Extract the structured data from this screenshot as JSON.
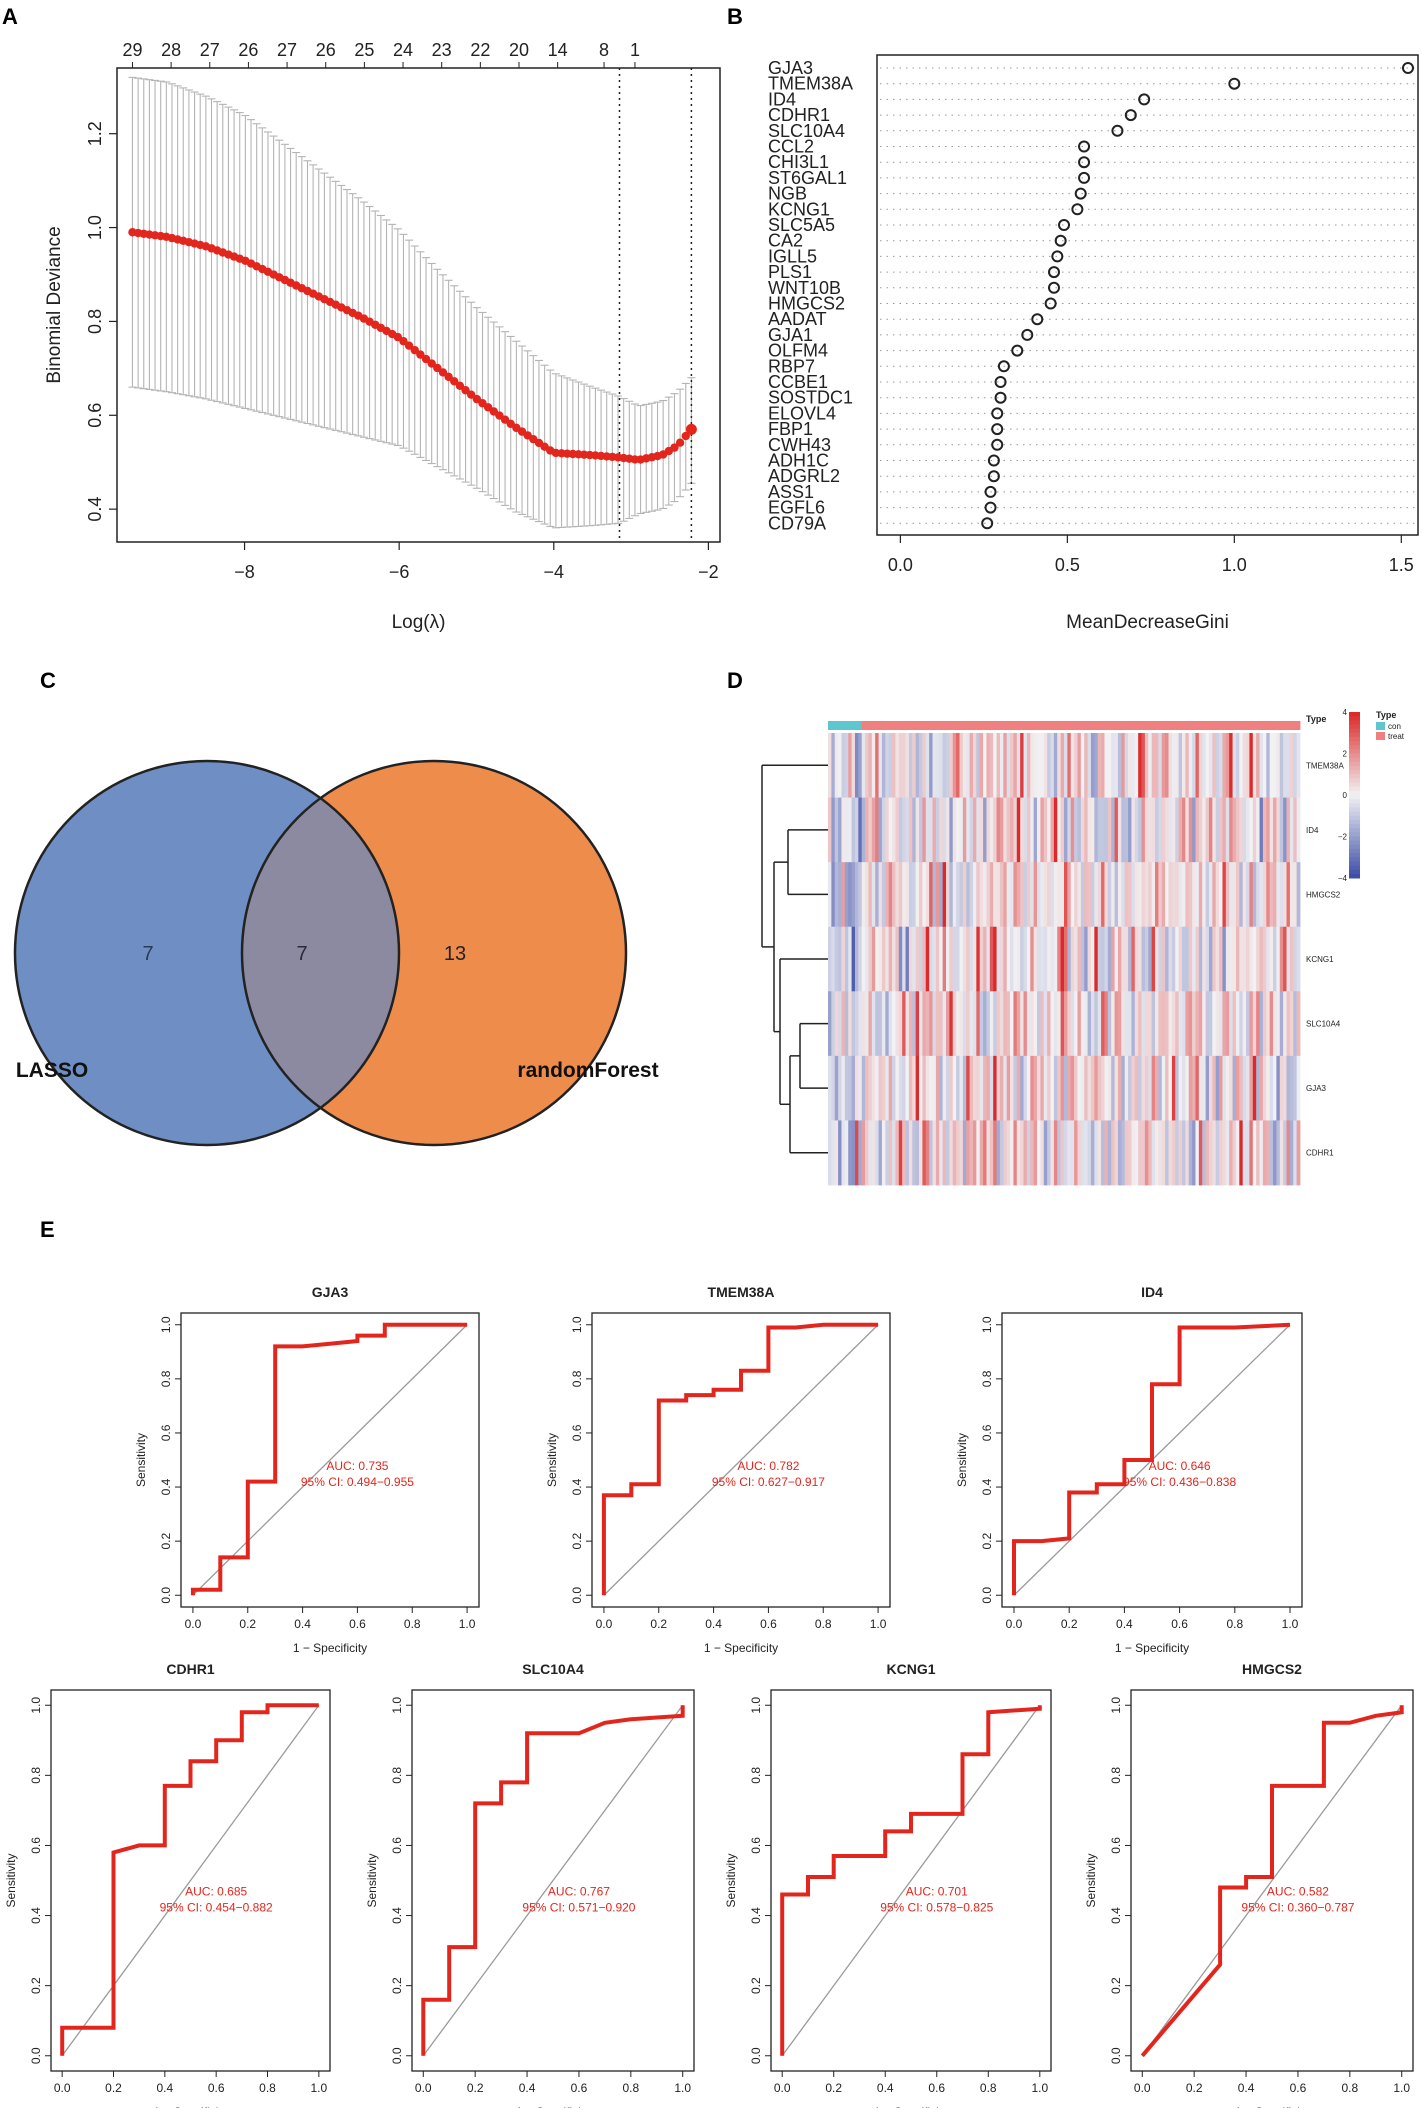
{
  "panel_labels": [
    "A",
    "B",
    "C",
    "D",
    "E"
  ],
  "chart_data": [
    {
      "panel": "A",
      "type": "line",
      "title": "",
      "xlabel": "Log(λ)",
      "ylabel": "Binomial Deviance",
      "xlim": [
        -9.65,
        -1.85
      ],
      "ylim": [
        0.33,
        1.34
      ],
      "x_ticks": [
        -8,
        -6,
        -4,
        -2
      ],
      "y_ticks": [
        0.4,
        0.6,
        0.8,
        1.0,
        1.2
      ],
      "x_tick_labels": [
        "−8",
        "−6",
        "−4",
        "−2"
      ],
      "y_tick_labels": [
        "0.4",
        "0.6",
        "0.8",
        "1.0",
        "1.2"
      ],
      "top_ticks": [
        -9.45,
        -8.95,
        -8.45,
        -7.95,
        -7.45,
        -6.95,
        -6.45,
        -5.95,
        -5.45,
        -4.95,
        -4.45,
        -3.95,
        -3.35,
        -2.95
      ],
      "top_tick_labels": [
        "29",
        "28",
        "27",
        "26",
        "27",
        "26",
        "25",
        "24",
        "23",
        "22",
        "20",
        "14",
        "8",
        "1"
      ],
      "vlines": [
        -3.15,
        -2.22
      ],
      "series": [
        {
          "name": "cv_mean",
          "points": [
            [
              -9.45,
              0.99
            ],
            [
              -9.0,
              0.98
            ],
            [
              -8.5,
              0.96
            ],
            [
              -8.0,
              0.93
            ],
            [
              -7.5,
              0.89
            ],
            [
              -7.0,
              0.85
            ],
            [
              -6.5,
              0.81
            ],
            [
              -6.0,
              0.765
            ],
            [
              -5.5,
              0.7
            ],
            [
              -5.0,
              0.635
            ],
            [
              -4.5,
              0.575
            ],
            [
              -4.0,
              0.52
            ],
            [
              -3.5,
              0.515
            ],
            [
              -3.15,
              0.51
            ],
            [
              -2.9,
              0.505
            ],
            [
              -2.6,
              0.515
            ],
            [
              -2.4,
              0.535
            ],
            [
              -2.22,
              0.57
            ]
          ]
        },
        {
          "name": "upper",
          "points": [
            [
              -9.45,
              1.32
            ],
            [
              -9.0,
              1.31
            ],
            [
              -8.5,
              1.28
            ],
            [
              -8.0,
              1.24
            ],
            [
              -7.5,
              1.18
            ],
            [
              -7.0,
              1.12
            ],
            [
              -6.5,
              1.06
            ],
            [
              -6.0,
              0.995
            ],
            [
              -5.5,
              0.91
            ],
            [
              -5.0,
              0.83
            ],
            [
              -4.5,
              0.76
            ],
            [
              -4.0,
              0.69
            ],
            [
              -3.5,
              0.66
            ],
            [
              -3.15,
              0.64
            ],
            [
              -2.9,
              0.62
            ],
            [
              -2.6,
              0.63
            ],
            [
              -2.4,
              0.65
            ],
            [
              -2.22,
              0.68
            ]
          ]
        },
        {
          "name": "lower",
          "points": [
            [
              -9.45,
              0.66
            ],
            [
              -9.0,
              0.65
            ],
            [
              -8.5,
              0.635
            ],
            [
              -8.0,
              0.615
            ],
            [
              -7.5,
              0.595
            ],
            [
              -7.0,
              0.575
            ],
            [
              -6.5,
              0.555
            ],
            [
              -6.0,
              0.535
            ],
            [
              -5.5,
              0.49
            ],
            [
              -5.0,
              0.445
            ],
            [
              -4.5,
              0.395
            ],
            [
              -4.0,
              0.36
            ],
            [
              -3.5,
              0.365
            ],
            [
              -3.15,
              0.37
            ],
            [
              -2.9,
              0.39
            ],
            [
              -2.6,
              0.4
            ],
            [
              -2.4,
              0.42
            ],
            [
              -2.22,
              0.455
            ]
          ]
        }
      ]
    },
    {
      "panel": "B",
      "type": "scatter",
      "title": "",
      "xlabel": "MeanDecreaseGini",
      "ylabel": "",
      "xlim": [
        -0.07,
        1.55
      ],
      "x_ticks": [
        0.0,
        0.5,
        1.0,
        1.5
      ],
      "x_tick_labels": [
        "0.0",
        "0.5",
        "1.0",
        "1.5"
      ],
      "categories": [
        "GJA3",
        "TMEM38A",
        "ID4",
        "CDHR1",
        "SLC10A4",
        "CCL2",
        "CHI3L1",
        "ST6GAL1",
        "NGB",
        "KCNG1",
        "SLC5A5",
        "CA2",
        "IGLL5",
        "PLS1",
        "WNT10B",
        "HMGCS2",
        "AADAT",
        "GJA1",
        "OLFM4",
        "RBP7",
        "CCBE1",
        "SOSTDC1",
        "ELOVL4",
        "FBP1",
        "CWH43",
        "ADH1C",
        "ADGRL2",
        "ASS1",
        "EGFL6",
        "CD79A"
      ],
      "values": [
        1.52,
        1.0,
        0.73,
        0.69,
        0.65,
        0.55,
        0.55,
        0.55,
        0.54,
        0.53,
        0.49,
        0.48,
        0.47,
        0.46,
        0.46,
        0.45,
        0.41,
        0.38,
        0.35,
        0.31,
        0.3,
        0.3,
        0.29,
        0.29,
        0.29,
        0.28,
        0.28,
        0.27,
        0.27,
        0.26
      ]
    },
    {
      "panel": "C",
      "type": "venn",
      "sets": [
        {
          "name": "LASSO",
          "only": 7,
          "color": "#6f8fc4"
        },
        {
          "name": "randomForest",
          "only": 13,
          "color": "#ee8c4c"
        }
      ],
      "overlap": 7,
      "overlap_color": "#8c8aa0"
    },
    {
      "panel": "D",
      "type": "heatmap",
      "rows": [
        "TMEM38A",
        "ID4",
        "HMGCS2",
        "KCNG1",
        "SLC10A4",
        "GJA3",
        "CDHR1"
      ],
      "columns": {
        "con": 10,
        "treat": 130
      },
      "legend_title": "Type",
      "legend_items": [
        "con",
        "treat"
      ],
      "legend_colors": [
        "#5ec6cf",
        "#f08080"
      ],
      "color_scale_ticks": [
        4,
        2,
        0,
        -2,
        -4
      ],
      "color_scale_labels": [
        "4",
        "2",
        "0",
        "−2",
        "−4"
      ],
      "color_low": "#3f4fa8",
      "color_mid": "#f2f2f4",
      "color_high": "#dc2a2a"
    },
    {
      "panel": "E",
      "type": "roc",
      "xlabel": "1 − Specificity",
      "ylabel": "Sensitivity",
      "axis_ticks": [
        0.0,
        0.2,
        0.4,
        0.6,
        0.8,
        1.0
      ],
      "axis_tick_labels": [
        "0.0",
        "0.2",
        "0.4",
        "0.6",
        "0.8",
        "1.0"
      ],
      "curves": [
        {
          "title": "GJA3",
          "auc_text": "AUC: 0.735",
          "ci_text": "95% CI: 0.494−0.955",
          "points": [
            [
              0,
              0
            ],
            [
              0,
              0.02
            ],
            [
              0.1,
              0.02
            ],
            [
              0.1,
              0.14
            ],
            [
              0.2,
              0.14
            ],
            [
              0.2,
              0.42
            ],
            [
              0.3,
              0.42
            ],
            [
              0.3,
              0.92
            ],
            [
              0.4,
              0.92
            ],
            [
              0.5,
              0.93
            ],
            [
              0.6,
              0.94
            ],
            [
              0.6,
              0.96
            ],
            [
              0.7,
              0.96
            ],
            [
              0.7,
              1.0
            ],
            [
              1,
              1
            ]
          ]
        },
        {
          "title": "TMEM38A",
          "auc_text": "AUC: 0.782",
          "ci_text": "95% CI: 0.627−0.917",
          "points": [
            [
              0,
              0
            ],
            [
              0,
              0.37
            ],
            [
              0.1,
              0.37
            ],
            [
              0.1,
              0.41
            ],
            [
              0.2,
              0.41
            ],
            [
              0.2,
              0.72
            ],
            [
              0.3,
              0.72
            ],
            [
              0.3,
              0.74
            ],
            [
              0.4,
              0.74
            ],
            [
              0.4,
              0.76
            ],
            [
              0.5,
              0.76
            ],
            [
              0.5,
              0.83
            ],
            [
              0.6,
              0.83
            ],
            [
              0.6,
              0.99
            ],
            [
              0.7,
              0.99
            ],
            [
              0.8,
              1.0
            ],
            [
              1,
              1
            ]
          ]
        },
        {
          "title": "ID4",
          "auc_text": "AUC: 0.646",
          "ci_text": "95% CI: 0.436−0.838",
          "points": [
            [
              0,
              0
            ],
            [
              0,
              0.2
            ],
            [
              0.1,
              0.2
            ],
            [
              0.2,
              0.21
            ],
            [
              0.2,
              0.38
            ],
            [
              0.3,
              0.38
            ],
            [
              0.3,
              0.41
            ],
            [
              0.4,
              0.41
            ],
            [
              0.4,
              0.5
            ],
            [
              0.5,
              0.5
            ],
            [
              0.5,
              0.78
            ],
            [
              0.6,
              0.78
            ],
            [
              0.6,
              0.99
            ],
            [
              0.8,
              0.99
            ],
            [
              1,
              1
            ]
          ]
        },
        {
          "title": "CDHR1",
          "auc_text": "AUC: 0.685",
          "ci_text": "95% CI: 0.454−0.882",
          "points": [
            [
              0,
              0
            ],
            [
              0,
              0.08
            ],
            [
              0.2,
              0.08
            ],
            [
              0.2,
              0.58
            ],
            [
              0.3,
              0.6
            ],
            [
              0.4,
              0.6
            ],
            [
              0.4,
              0.77
            ],
            [
              0.5,
              0.77
            ],
            [
              0.5,
              0.84
            ],
            [
              0.6,
              0.84
            ],
            [
              0.6,
              0.9
            ],
            [
              0.7,
              0.9
            ],
            [
              0.7,
              0.98
            ],
            [
              0.8,
              0.98
            ],
            [
              0.8,
              1.0
            ],
            [
              1,
              1
            ]
          ]
        },
        {
          "title": "SLC10A4",
          "auc_text": "AUC: 0.767",
          "ci_text": "95% CI: 0.571−0.920",
          "points": [
            [
              0,
              0
            ],
            [
              0,
              0.16
            ],
            [
              0.1,
              0.16
            ],
            [
              0.1,
              0.31
            ],
            [
              0.2,
              0.31
            ],
            [
              0.2,
              0.72
            ],
            [
              0.3,
              0.72
            ],
            [
              0.3,
              0.78
            ],
            [
              0.4,
              0.78
            ],
            [
              0.4,
              0.92
            ],
            [
              0.6,
              0.92
            ],
            [
              0.7,
              0.95
            ],
            [
              0.8,
              0.96
            ],
            [
              1,
              0.97
            ],
            [
              1,
              1
            ]
          ]
        },
        {
          "title": "KCNG1",
          "auc_text": "AUC: 0.701",
          "ci_text": "95% CI: 0.578−0.825",
          "points": [
            [
              0,
              0
            ],
            [
              0,
              0.46
            ],
            [
              0.1,
              0.46
            ],
            [
              0.1,
              0.51
            ],
            [
              0.2,
              0.51
            ],
            [
              0.2,
              0.57
            ],
            [
              0.4,
              0.57
            ],
            [
              0.4,
              0.64
            ],
            [
              0.5,
              0.64
            ],
            [
              0.5,
              0.69
            ],
            [
              0.7,
              0.69
            ],
            [
              0.7,
              0.86
            ],
            [
              0.8,
              0.86
            ],
            [
              0.8,
              0.98
            ],
            [
              1,
              0.99
            ],
            [
              1,
              1
            ]
          ]
        },
        {
          "title": "HMGCS2",
          "auc_text": "AUC: 0.582",
          "ci_text": "95% CI: 0.360−0.787",
          "points": [
            [
              0,
              0
            ],
            [
              0.3,
              0.26
            ],
            [
              0.3,
              0.48
            ],
            [
              0.4,
              0.48
            ],
            [
              0.4,
              0.51
            ],
            [
              0.5,
              0.51
            ],
            [
              0.5,
              0.77
            ],
            [
              0.7,
              0.77
            ],
            [
              0.7,
              0.95
            ],
            [
              0.8,
              0.95
            ],
            [
              0.9,
              0.97
            ],
            [
              1,
              0.98
            ],
            [
              1,
              1
            ]
          ]
        }
      ]
    }
  ]
}
